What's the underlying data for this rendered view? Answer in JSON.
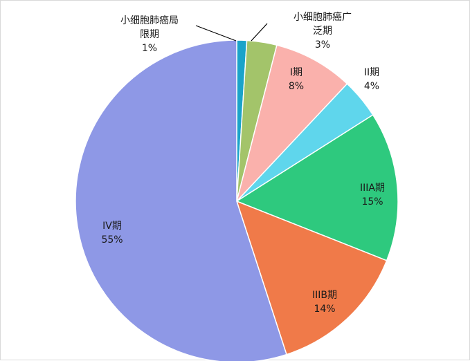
{
  "chart_data": {
    "type": "pie",
    "title": "",
    "start_angle_deg": 0,
    "direction": "clockwise",
    "slices": [
      {
        "label_lines": [
          "小细胞肺癌局",
          "限期"
        ],
        "label": "小细胞肺癌局限期",
        "value": 1,
        "value_label": "1%",
        "color": "#1aa3c9"
      },
      {
        "label_lines": [
          "小细胞肺癌广",
          "泛期"
        ],
        "label": "小细胞肺癌广泛期",
        "value": 3,
        "value_label": "3%",
        "color": "#a3c46a"
      },
      {
        "label_lines": [
          "I期"
        ],
        "label": "I期",
        "value": 8,
        "value_label": "8%",
        "color": "#fab1ac"
      },
      {
        "label_lines": [
          "II期"
        ],
        "label": "II期",
        "value": 4,
        "value_label": "4%",
        "color": "#5fd6ec"
      },
      {
        "label_lines": [
          "IIIA期"
        ],
        "label": "IIIA期",
        "value": 15,
        "value_label": "15%",
        "color": "#2ec97e"
      },
      {
        "label_lines": [
          "IIIB期"
        ],
        "label": "IIIB期",
        "value": 14,
        "value_label": "14%",
        "color": "#f07a49"
      },
      {
        "label_lines": [
          "IV期"
        ],
        "label": "IV期",
        "value": 55,
        "value_label": "55%",
        "color": "#8e98e6"
      }
    ]
  }
}
